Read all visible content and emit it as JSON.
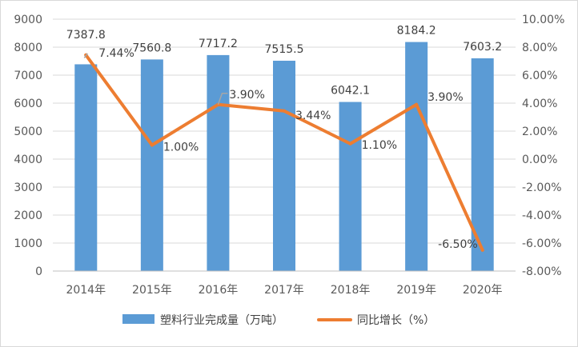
{
  "chart_data": {
    "type": "bar",
    "categories": [
      "2014年",
      "2015年",
      "2016年",
      "2017年",
      "2018年",
      "2019年",
      "2020年"
    ],
    "series": [
      {
        "name": "塑料行业完成量（万吨）",
        "type": "bar",
        "axis": "left",
        "values": [
          7387.8,
          7560.8,
          7717.2,
          7515.5,
          6042.1,
          8184.2,
          7603.2
        ],
        "labels": [
          "7387.8",
          "7560.8",
          "7717.2",
          "7515.5",
          "6042.1",
          "8184.2",
          "7603.2"
        ]
      },
      {
        "name": "同比增长（%）",
        "type": "line",
        "axis": "right",
        "values": [
          7.44,
          1.0,
          3.9,
          3.44,
          1.1,
          3.9,
          -6.5
        ],
        "labels": [
          "7.44%",
          "1.00%",
          "3.90%",
          "3.44%",
          "1.10%",
          "3.90%",
          "-6.50%"
        ]
      }
    ],
    "y_left": {
      "lim": [
        0,
        9000
      ],
      "ticks": [
        0,
        1000,
        2000,
        3000,
        4000,
        5000,
        6000,
        7000,
        8000,
        9000
      ],
      "tick_labels": [
        "0",
        "1000",
        "2000",
        "3000",
        "4000",
        "5000",
        "6000",
        "7000",
        "8000",
        "9000"
      ]
    },
    "y_right": {
      "lim": [
        -8,
        10
      ],
      "ticks": [
        -8,
        -6,
        -4,
        -2,
        0,
        2,
        4,
        6,
        8,
        10
      ],
      "tick_labels": [
        "-8.00%",
        "-6.00%",
        "-4.00%",
        "-2.00%",
        "0.00%",
        "2.00%",
        "4.00%",
        "6.00%",
        "8.00%",
        "10.00%"
      ]
    },
    "grid": true,
    "legend_position": "bottom",
    "colors": {
      "bar": "#5b9bd5",
      "line": "#ed7d31",
      "grid": "#d9d9d9",
      "axis": "#bfbfbf",
      "text": "#595959"
    }
  }
}
